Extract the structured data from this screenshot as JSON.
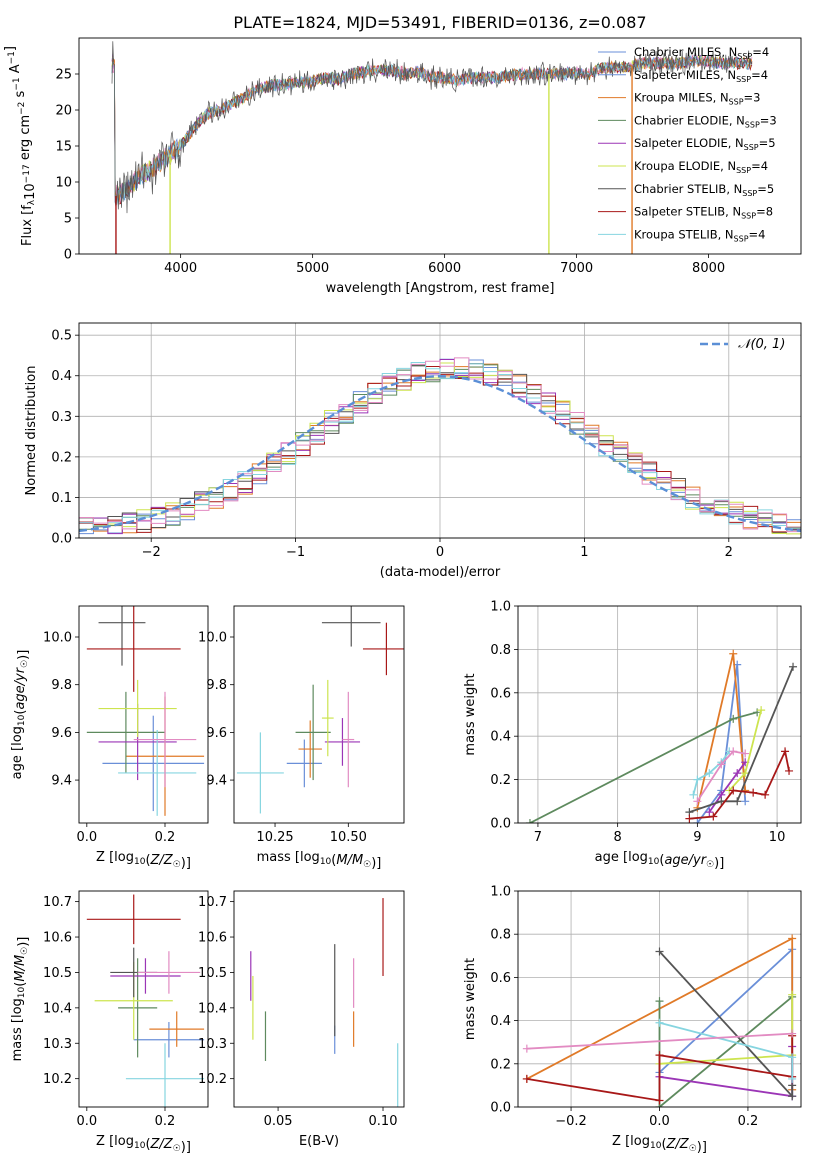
{
  "figure_title": "PLATE=1824, MJD=53491, FIBERID=0136, z=0.087",
  "colors": [
    "#6a8fd8",
    "#e07a28",
    "#5e8a5e",
    "#9b35b6",
    "#cde44f",
    "#555555",
    "#a81818",
    "#86d5e0",
    "#e28bc2"
  ],
  "chart_data": [
    {
      "id": "spectrum",
      "type": "line",
      "title": "PLATE=1824, MJD=53491, FIBERID=0136, z=0.087",
      "xlabel": "wavelength [Angstrom, rest frame]",
      "ylabel": "Flux [f_λ 10^-17 erg cm^-2 s^-1 A^-1]",
      "xlim": [
        3230,
        8700
      ],
      "ylim": [
        0,
        30
      ],
      "xticks": [
        4000,
        5000,
        6000,
        7000,
        8000
      ],
      "yticks": [
        0,
        5,
        10,
        15,
        20,
        25
      ],
      "grid": false,
      "legend_position": "top-right",
      "legend": [
        {
          "name": "Chabrier MILES, N_SSP=4",
          "color": "#6a8fd8"
        },
        {
          "name": "Salpeter MILES, N_SSP=4",
          "color": "#6a8fd8"
        },
        {
          "name": "Kroupa MILES, N_SSP=3",
          "color": "#e07a28"
        },
        {
          "name": "Chabrier ELODIE, N_SSP=3",
          "color": "#5e8a5e"
        },
        {
          "name": "Salpeter ELODIE, N_SSP=5",
          "color": "#9b35b6"
        },
        {
          "name": "Kroupa ELODIE, N_SSP=4",
          "color": "#cde44f"
        },
        {
          "name": "Chabrier STELIB, N_SSP=5",
          "color": "#555555"
        },
        {
          "name": "Salpeter STELIB, N_SSP=8",
          "color": "#a81818"
        },
        {
          "name": "Kroupa STELIB, N_SSP=4",
          "color": "#86d5e0"
        }
      ],
      "continuum": [
        [
          3500,
          8
        ],
        [
          3600,
          9
        ],
        [
          3700,
          11
        ],
        [
          3800,
          12
        ],
        [
          3900,
          13.5
        ],
        [
          4000,
          15
        ],
        [
          4100,
          17.5
        ],
        [
          4200,
          19.5
        ],
        [
          4300,
          20
        ],
        [
          4400,
          21
        ],
        [
          4500,
          22
        ],
        [
          4600,
          23
        ],
        [
          4700,
          23.5
        ],
        [
          4800,
          23.5
        ],
        [
          4900,
          23.8
        ],
        [
          5000,
          24
        ],
        [
          5100,
          24.5
        ],
        [
          5200,
          24.3
        ],
        [
          5300,
          25
        ],
        [
          5400,
          25.3
        ],
        [
          5500,
          25.5
        ],
        [
          5600,
          25.5
        ],
        [
          5700,
          25
        ],
        [
          5800,
          25.3
        ],
        [
          5900,
          24.5
        ],
        [
          6000,
          24.5
        ],
        [
          6100,
          24
        ],
        [
          6200,
          24.5
        ],
        [
          6300,
          24.5
        ],
        [
          6400,
          24.5
        ],
        [
          6500,
          24.8
        ],
        [
          6600,
          25
        ],
        [
          6700,
          25
        ],
        [
          6800,
          25
        ],
        [
          6900,
          25
        ],
        [
          7000,
          25.2
        ],
        [
          7100,
          25
        ],
        [
          7200,
          26
        ],
        [
          7300,
          26
        ],
        [
          7400,
          26
        ],
        [
          7500,
          26.5
        ],
        [
          7600,
          26.5
        ],
        [
          7700,
          26.5
        ],
        [
          7800,
          26.5
        ],
        [
          7900,
          26.8
        ],
        [
          8000,
          26.8
        ],
        [
          8100,
          26.5
        ],
        [
          8200,
          26.5
        ],
        [
          8300,
          26.5
        ]
      ],
      "dips": [
        {
          "x": 3510,
          "y": 0,
          "color": "#a81818"
        },
        {
          "x": 3920,
          "y": 0,
          "color": "#cde44f"
        },
        {
          "x": 6790,
          "y": 0,
          "color": "#cde44f"
        },
        {
          "x": 7420,
          "y": 0,
          "color": "#e07a28"
        }
      ]
    },
    {
      "id": "residuals",
      "type": "step",
      "xlabel": "(data-model)/error",
      "ylabel": "Normed distribution",
      "xlim": [
        -2.5,
        2.5
      ],
      "ylim": [
        0,
        0.53
      ],
      "xticks": [
        -2,
        -1,
        0,
        1,
        2
      ],
      "yticks": [
        0,
        0.1,
        0.2,
        0.3,
        0.4,
        0.5
      ],
      "grid": true,
      "legend_position": "top-right",
      "reference_label": "𝒩(0, 1)",
      "reference_color": "#5b8fd6",
      "bin_edges_start": -2.5,
      "bin_width": 0.1
    },
    {
      "id": "age-vs-Z",
      "type": "errorbar",
      "xlabel": "Z [log10(Z/Z☉)]",
      "ylabel": "age  [log10(age/yr)]",
      "xlim": [
        -0.02,
        0.31
      ],
      "ylim": [
        9.22,
        10.13
      ],
      "xticks": [
        0.0,
        0.2
      ],
      "yticks": [
        9.4,
        9.6,
        9.8,
        10.0
      ],
      "grid": false,
      "points": [
        {
          "x": 0.17,
          "y": 9.47,
          "xerr": 0.13,
          "yerr": 0.2,
          "color": "#6a8fd8"
        },
        {
          "x": 0.2,
          "y": 9.5,
          "xerr": 0.1,
          "yerr": 0.25,
          "color": "#e07a28"
        },
        {
          "x": 0.1,
          "y": 9.6,
          "xerr": 0.1,
          "yerr": 0.17,
          "color": "#5e8a5e"
        },
        {
          "x": 0.13,
          "y": 9.56,
          "xerr": 0.1,
          "yerr": 0.16,
          "color": "#9b35b6"
        },
        {
          "x": 0.13,
          "y": 9.7,
          "xerr": 0.1,
          "yerr": 0.12,
          "color": "#cde44f"
        },
        {
          "x": 0.09,
          "y": 10.06,
          "xerr": 0.06,
          "yerr": 0.18,
          "color": "#555555"
        },
        {
          "x": 0.12,
          "y": 9.95,
          "xerr": 0.12,
          "yerr": 0.18,
          "color": "#a81818"
        },
        {
          "x": 0.18,
          "y": 9.43,
          "xerr": 0.1,
          "yerr": 0.18,
          "color": "#86d5e0"
        },
        {
          "x": 0.2,
          "y": 9.57,
          "xerr": 0.08,
          "yerr": 0.2,
          "color": "#e28bc2"
        }
      ]
    },
    {
      "id": "age-vs-mass",
      "type": "errorbar",
      "xlabel": "mass [log10(M/M☉)]",
      "ylabel": "",
      "xlim": [
        10.11,
        10.69
      ],
      "ylim": [
        9.22,
        10.13
      ],
      "xticks": [
        10.25,
        10.5
      ],
      "yticks": [
        9.4,
        9.6,
        9.8,
        10.0
      ],
      "grid": false,
      "points": [
        {
          "x": 10.35,
          "y": 9.47,
          "xerr": 0.06,
          "yerr": 0.1,
          "color": "#6a8fd8"
        },
        {
          "x": 10.37,
          "y": 9.53,
          "xerr": 0.04,
          "yerr": 0.12,
          "color": "#e07a28"
        },
        {
          "x": 10.38,
          "y": 9.6,
          "xerr": 0.06,
          "yerr": 0.2,
          "color": "#5e8a5e"
        },
        {
          "x": 10.48,
          "y": 9.56,
          "xerr": 0.06,
          "yerr": 0.1,
          "color": "#9b35b6"
        },
        {
          "x": 10.43,
          "y": 9.66,
          "xerr": 0.02,
          "yerr": 0.16,
          "color": "#cde44f"
        },
        {
          "x": 10.51,
          "y": 10.06,
          "xerr": 0.1,
          "yerr": 0.1,
          "color": "#555555"
        },
        {
          "x": 10.63,
          "y": 9.95,
          "xerr": 0.08,
          "yerr": 0.11,
          "color": "#a81818"
        },
        {
          "x": 10.2,
          "y": 9.43,
          "xerr": 0.08,
          "yerr": 0.17,
          "color": "#86d5e0"
        },
        {
          "x": 10.5,
          "y": 9.57,
          "xerr": 0.02,
          "yerr": 0.2,
          "color": "#e28bc2"
        }
      ]
    },
    {
      "id": "weight-vs-age",
      "type": "line",
      "xlabel": "age  [log10(age/yr)]",
      "ylabel": "mass weight",
      "xlim": [
        6.75,
        10.3
      ],
      "ylim": [
        0,
        1
      ],
      "xticks": [
        7,
        8,
        9,
        10
      ],
      "yticks": [
        0.0,
        0.2,
        0.4,
        0.6,
        0.8,
        1.0
      ],
      "grid": true,
      "series": [
        {
          "color": "#6a8fd8",
          "points": [
            [
              9.0,
              0.0
            ],
            [
              9.3,
              0.15
            ],
            [
              9.5,
              0.73
            ],
            [
              9.6,
              0.1
            ]
          ]
        },
        {
          "color": "#e07a28",
          "points": [
            [
              9.0,
              0.07
            ],
            [
              9.45,
              0.78
            ],
            [
              9.6,
              0.15
            ]
          ]
        },
        {
          "color": "#5e8a5e",
          "points": [
            [
              6.9,
              0.0
            ],
            [
              9.45,
              0.48
            ],
            [
              9.75,
              0.51
            ]
          ]
        },
        {
          "color": "#9b35b6",
          "points": [
            [
              9.15,
              0.05
            ],
            [
              9.3,
              0.13
            ],
            [
              9.5,
              0.23
            ],
            [
              9.6,
              0.28
            ]
          ]
        },
        {
          "color": "#cde44f",
          "points": [
            [
              9.4,
              0.15
            ],
            [
              9.6,
              0.23
            ],
            [
              9.8,
              0.52
            ]
          ]
        },
        {
          "color": "#555555",
          "points": [
            [
              8.9,
              0.05
            ],
            [
              9.3,
              0.1
            ],
            [
              9.5,
              0.1
            ],
            [
              10.2,
              0.72
            ]
          ]
        },
        {
          "color": "#a81818",
          "points": [
            [
              8.9,
              0.02
            ],
            [
              9.2,
              0.03
            ],
            [
              9.45,
              0.15
            ],
            [
              9.7,
              0.14
            ],
            [
              9.85,
              0.13
            ],
            [
              10.1,
              0.33
            ],
            [
              10.15,
              0.24
            ]
          ]
        },
        {
          "color": "#86d5e0",
          "points": [
            [
              8.95,
              0.13
            ],
            [
              9.0,
              0.2
            ],
            [
              9.15,
              0.23
            ],
            [
              9.3,
              0.28
            ],
            [
              9.4,
              0.33
            ]
          ]
        },
        {
          "color": "#e28bc2",
          "points": [
            [
              9.0,
              0.1
            ],
            [
              9.3,
              0.27
            ],
            [
              9.45,
              0.33
            ],
            [
              9.6,
              0.32
            ]
          ]
        }
      ]
    },
    {
      "id": "mass-vs-Z",
      "type": "errorbar",
      "xlabel": "Z [log10(Z/Z☉)]",
      "ylabel": "mass [log10(M/M☉)]",
      "xlim": [
        -0.02,
        0.31
      ],
      "ylim": [
        10.12,
        10.73
      ],
      "xticks": [
        0.0,
        0.2
      ],
      "yticks": [
        10.2,
        10.3,
        10.4,
        10.5,
        10.6,
        10.7
      ],
      "grid": false,
      "points": [
        {
          "x": 0.21,
          "y": 10.31,
          "xerr": 0.09,
          "yerr": 0.05,
          "color": "#6a8fd8"
        },
        {
          "x": 0.23,
          "y": 10.34,
          "xerr": 0.07,
          "yerr": 0.05,
          "color": "#e07a28"
        },
        {
          "x": 0.13,
          "y": 10.4,
          "xerr": 0.05,
          "yerr": 0.14,
          "color": "#5e8a5e"
        },
        {
          "x": 0.15,
          "y": 10.49,
          "xerr": 0.09,
          "yerr": 0.05,
          "color": "#9b35b6"
        },
        {
          "x": 0.12,
          "y": 10.42,
          "xerr": 0.1,
          "yerr": 0.11,
          "color": "#cde44f"
        },
        {
          "x": 0.12,
          "y": 10.5,
          "xerr": 0.06,
          "yerr": 0.07,
          "color": "#555555"
        },
        {
          "x": 0.12,
          "y": 10.65,
          "xerr": 0.12,
          "yerr": 0.07,
          "color": "#a81818"
        },
        {
          "x": 0.2,
          "y": 10.2,
          "xerr": 0.1,
          "yerr": 0.1,
          "color": "#86d5e0"
        },
        {
          "x": 0.21,
          "y": 10.5,
          "xerr": 0.08,
          "yerr": 0.06,
          "color": "#e28bc2"
        }
      ]
    },
    {
      "id": "mass-vs-EBV",
      "type": "errorbar",
      "xlabel": "E(B-V)",
      "ylabel": "",
      "xlim": [
        0.029,
        0.11
      ],
      "ylim": [
        10.12,
        10.73
      ],
      "xticks": [
        0.05,
        0.1
      ],
      "yticks": [
        10.2,
        10.3,
        10.4,
        10.5,
        10.6,
        10.7
      ],
      "grid": false,
      "points": [
        {
          "x": 0.077,
          "y": 10.31,
          "xerr": 0,
          "yerr": 0.04,
          "color": "#6a8fd8"
        },
        {
          "x": 0.086,
          "y": 10.34,
          "xerr": 0,
          "yerr": 0.05,
          "color": "#e07a28"
        },
        {
          "x": 0.044,
          "y": 10.32,
          "xerr": 0,
          "yerr": 0.07,
          "color": "#5e8a5e"
        },
        {
          "x": 0.037,
          "y": 10.49,
          "xerr": 0,
          "yerr": 0.07,
          "color": "#9b35b6"
        },
        {
          "x": 0.038,
          "y": 10.4,
          "xerr": 0,
          "yerr": 0.09,
          "color": "#cde44f"
        },
        {
          "x": 0.077,
          "y": 10.45,
          "xerr": 0,
          "yerr": 0.13,
          "color": "#555555"
        },
        {
          "x": 0.1,
          "y": 10.6,
          "xerr": 0,
          "yerr": 0.11,
          "color": "#a81818"
        },
        {
          "x": 0.107,
          "y": 10.21,
          "xerr": 0,
          "yerr": 0.09,
          "color": "#86d5e0"
        },
        {
          "x": 0.086,
          "y": 10.47,
          "xerr": 0,
          "yerr": 0.07,
          "color": "#e28bc2"
        }
      ]
    },
    {
      "id": "weight-vs-Z",
      "type": "line",
      "xlabel": "Z [log10(Z/Z☉)]",
      "ylabel": "mass weight",
      "xlim": [
        -0.32,
        0.32
      ],
      "ylim": [
        0,
        1
      ],
      "xticks": [
        -0.2,
        0.0,
        0.2
      ],
      "yticks": [
        0.0,
        0.2,
        0.4,
        0.6,
        0.8,
        1.0
      ],
      "grid": true,
      "series": [
        {
          "color": "#6a8fd8",
          "points": [
            [
              0.0,
              0.16
            ],
            [
              0.3,
              0.73
            ],
            [
              0.3,
              0.05
            ]
          ]
        },
        {
          "color": "#e07a28",
          "points": [
            [
              -0.3,
              0.13
            ],
            [
              0.3,
              0.78
            ],
            [
              0.3,
              0.08
            ]
          ]
        },
        {
          "color": "#5e8a5e",
          "points": [
            [
              0.0,
              0.49
            ],
            [
              0.0,
              0.0
            ],
            [
              0.3,
              0.51
            ]
          ]
        },
        {
          "color": "#9b35b6",
          "points": [
            [
              0.0,
              0.14
            ],
            [
              0.3,
              0.05
            ],
            [
              0.3,
              0.28
            ]
          ]
        },
        {
          "color": "#cde44f",
          "points": [
            [
              0.0,
              0.2
            ],
            [
              0.3,
              0.24
            ],
            [
              0.3,
              0.52
            ]
          ]
        },
        {
          "color": "#555555",
          "points": [
            [
              0.0,
              0.72
            ],
            [
              0.3,
              0.05
            ],
            [
              0.3,
              0.1
            ]
          ]
        },
        {
          "color": "#a81818",
          "points": [
            [
              -0.3,
              0.13
            ],
            [
              0.0,
              0.03
            ],
            [
              0.0,
              0.24
            ],
            [
              0.3,
              0.14
            ],
            [
              0.3,
              0.33
            ]
          ]
        },
        {
          "color": "#86d5e0",
          "points": [
            [
              0.0,
              0.39
            ],
            [
              0.3,
              0.23
            ],
            [
              0.3,
              0.13
            ]
          ]
        },
        {
          "color": "#e28bc2",
          "points": [
            [
              -0.3,
              0.27
            ],
            [
              0.3,
              0.34
            ]
          ]
        }
      ]
    }
  ]
}
